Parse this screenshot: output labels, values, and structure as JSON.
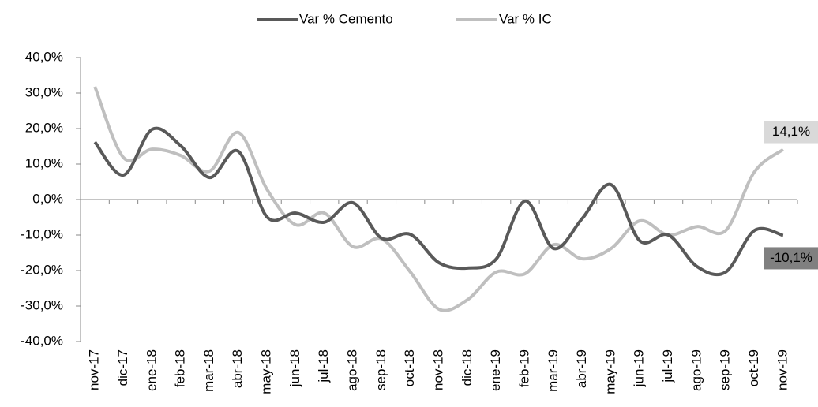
{
  "chart_data": {
    "type": "line",
    "categories": [
      "nov-17",
      "dic-17",
      "ene-18",
      "feb-18",
      "mar-18",
      "abr-18",
      "may-18",
      "jun-18",
      "jul-18",
      "ago-18",
      "sep-18",
      "oct-18",
      "nov-18",
      "dic-18",
      "ene-19",
      "feb-19",
      "mar-19",
      "abr-19",
      "may-19",
      "jun-19",
      "jul-19",
      "ago-19",
      "sep-19",
      "oct-19",
      "nov-19"
    ],
    "series": [
      {
        "name": "Var % Cemento",
        "color": "#595959",
        "values": [
          16.2,
          6.9,
          19.8,
          15.1,
          6.2,
          13.6,
          -4.9,
          -3.8,
          -6.4,
          -0.9,
          -10.9,
          -9.8,
          -17.8,
          -19.3,
          -16.7,
          -0.4,
          -13.8,
          -5.3,
          4.2,
          -11.6,
          -10.0,
          -18.9,
          -20.4,
          -8.7,
          -10.1
        ],
        "value_labels": [
          null,
          null,
          null,
          null,
          null,
          null,
          null,
          null,
          null,
          null,
          null,
          null,
          null,
          null,
          null,
          null,
          null,
          null,
          null,
          null,
          null,
          null,
          null,
          null,
          "-10,1%"
        ]
      },
      {
        "name": "Var % IC",
        "color": "#bfbfbf",
        "values": [
          31.8,
          11.8,
          14.2,
          12.4,
          8.0,
          18.9,
          2.9,
          -7.1,
          -3.8,
          -13.3,
          -11.1,
          -20.4,
          -30.9,
          -28.2,
          -20.4,
          -20.9,
          -12.7,
          -16.7,
          -13.8,
          -6.0,
          -10.0,
          -7.6,
          -8.7,
          7.8,
          14.1
        ],
        "value_labels": [
          null,
          null,
          null,
          null,
          null,
          null,
          null,
          null,
          null,
          null,
          null,
          null,
          null,
          null,
          null,
          null,
          null,
          null,
          null,
          null,
          null,
          null,
          null,
          null,
          "14,1%"
        ]
      }
    ],
    "ylim": [
      -40,
      40
    ],
    "yticks": [
      {
        "value": -40,
        "label": "-40,0%"
      },
      {
        "value": -30,
        "label": "-30,0%"
      },
      {
        "value": -20,
        "label": "-20,0%"
      },
      {
        "value": -10,
        "label": "-10,0%"
      },
      {
        "value": 0,
        "label": "0,0%"
      },
      {
        "value": 10,
        "label": "10,0%"
      },
      {
        "value": 20,
        "label": "20,0%"
      },
      {
        "value": 30,
        "label": "30,0%"
      },
      {
        "value": 40,
        "label": "40,0%"
      }
    ],
    "legend": "top",
    "grid": false
  }
}
